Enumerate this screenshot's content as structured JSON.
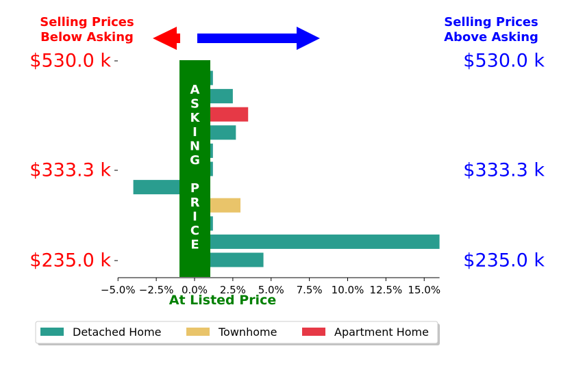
{
  "chart_data": {
    "type": "bar",
    "orientation": "horizontal",
    "header_left": [
      "Selling Prices",
      "Below Asking"
    ],
    "header_right": [
      "Selling Prices",
      "Above Asking"
    ],
    "center_label": [
      "A",
      "S",
      "K",
      "I",
      "N",
      "G",
      "",
      "P",
      "R",
      "I",
      "C",
      "E"
    ],
    "xlabel": "At Listed Price",
    "xlim": [
      -5.0,
      16.0
    ],
    "xticks": [
      "−5.0%",
      "−2.5%",
      "0.0%",
      "2.5%",
      "5.0%",
      "7.5%",
      "10.0%",
      "12.5%",
      "15.0%"
    ],
    "xtick_values": [
      -5.0,
      -2.5,
      0.0,
      2.5,
      5.0,
      7.5,
      10.0,
      12.5,
      15.0
    ],
    "price_labels": [
      {
        "label": "$530.0 k",
        "row": 0
      },
      {
        "label": "$333.3 k",
        "row": 6
      },
      {
        "label": "$235.0 k",
        "row": 11
      }
    ],
    "bars": [
      {
        "row": 0,
        "value": 1.2,
        "type": "Detached Home"
      },
      {
        "row": 1,
        "value": 2.5,
        "type": "Detached Home"
      },
      {
        "row": 2,
        "value": 3.5,
        "type": "Apartment Home"
      },
      {
        "row": 3,
        "value": 2.7,
        "type": "Detached Home"
      },
      {
        "row": 4,
        "value": 1.2,
        "type": "Detached Home"
      },
      {
        "row": 5,
        "value": 1.2,
        "type": "Detached Home"
      },
      {
        "row": 6,
        "value": -4.0,
        "type": "Detached Home"
      },
      {
        "row": 7,
        "value": 3.0,
        "type": "Townhome"
      },
      {
        "row": 8,
        "value": 1.2,
        "type": "Detached Home"
      },
      {
        "row": 9,
        "value": 16.0,
        "type": "Detached Home"
      },
      {
        "row": 10,
        "value": 4.5,
        "type": "Detached Home"
      }
    ],
    "legend": [
      {
        "name": "Detached Home",
        "color": "#2a9d8f"
      },
      {
        "name": "Townhome",
        "color": "#e9c46a"
      },
      {
        "name": "Apartment Home",
        "color": "#e63946"
      }
    ],
    "legend_position": "bottom",
    "grid": false,
    "colors": {
      "below": "#ff0000",
      "above": "#0000ff",
      "asking": "#008000"
    }
  }
}
